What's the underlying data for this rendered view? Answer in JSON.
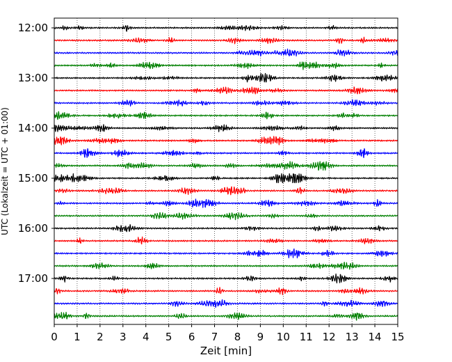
{
  "chart_data": {
    "type": "line",
    "title": "",
    "xlabel": "Zeit  [min]",
    "ylabel": "UTC (Lokalzeit = UTC + 01:00)",
    "xlim": [
      0,
      15
    ],
    "x_ticks": [
      0,
      1,
      2,
      3,
      4,
      5,
      6,
      7,
      8,
      9,
      10,
      11,
      12,
      13,
      14,
      15
    ],
    "y_tick_labels": [
      "12:00",
      "13:00",
      "14:00",
      "15:00",
      "16:00",
      "17:00"
    ],
    "row_interval_minutes": 15,
    "grid": "vertical dotted at each minute",
    "color_cycle": [
      "#000000",
      "#ff0000",
      "#0000ff",
      "#008000"
    ],
    "rows": [
      {
        "start": "12:00"
      },
      {
        "start": "12:15"
      },
      {
        "start": "12:30"
      },
      {
        "start": "12:45"
      },
      {
        "start": "13:00"
      },
      {
        "start": "13:15"
      },
      {
        "start": "13:30"
      },
      {
        "start": "13:45"
      },
      {
        "start": "14:00"
      },
      {
        "start": "14:15"
      },
      {
        "start": "14:30"
      },
      {
        "start": "14:45"
      },
      {
        "start": "15:00"
      },
      {
        "start": "15:15"
      },
      {
        "start": "15:30"
      },
      {
        "start": "15:45"
      },
      {
        "start": "16:00"
      },
      {
        "start": "16:15"
      },
      {
        "start": "16:30"
      },
      {
        "start": "16:45"
      },
      {
        "start": "17:00"
      },
      {
        "start": "17:15"
      },
      {
        "start": "17:30"
      },
      {
        "start": "17:45"
      }
    ]
  }
}
